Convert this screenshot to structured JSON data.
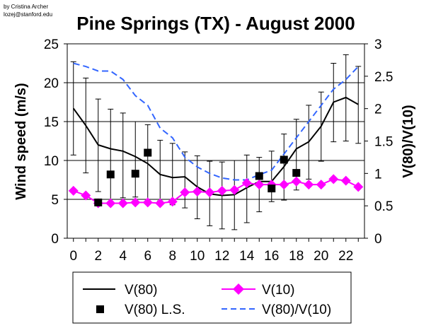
{
  "credit": {
    "line1": "by Cristina Archer",
    "line2": "lozej@stanford.edu"
  },
  "chart_data": {
    "type": "line",
    "title": "Pine Springs (TX) - August 2000",
    "xlabel": "",
    "ylabel": "Wind speed (m/s)",
    "y2label": "V(80)/V(10)",
    "x": [
      0,
      1,
      2,
      3,
      4,
      5,
      6,
      7,
      8,
      9,
      10,
      11,
      12,
      13,
      14,
      15,
      16,
      17,
      18,
      19,
      20,
      21,
      22,
      23
    ],
    "xticks": [
      "0",
      "2",
      "4",
      "6",
      "8",
      "10",
      "12",
      "14",
      "16",
      "18",
      "20",
      "22"
    ],
    "xtick_values": [
      0,
      2,
      4,
      6,
      8,
      10,
      12,
      14,
      16,
      18,
      20,
      22
    ],
    "xlim": [
      -0.5,
      23.5
    ],
    "ylim": [
      0,
      25
    ],
    "yticks": [
      "0",
      "5",
      "10",
      "15",
      "20",
      "25"
    ],
    "ytick_values": [
      0,
      5,
      10,
      15,
      20,
      25
    ],
    "y2lim": [
      0,
      3
    ],
    "y2ticks": [
      "0",
      "0.5",
      "1",
      "1.5",
      "2",
      "2.5",
      "3"
    ],
    "y2tick_values": [
      0,
      0.5,
      1,
      1.5,
      2,
      2.5,
      3
    ],
    "grid": "horizontal",
    "series": [
      {
        "name": "V(80)",
        "axis": "left",
        "style": "solid",
        "color": "#000000",
        "values": [
          16.7,
          14.5,
          12.0,
          11.5,
          11.2,
          10.5,
          9.6,
          8.2,
          7.8,
          7.9,
          6.6,
          5.7,
          5.5,
          5.6,
          6.5,
          7.3,
          7.3,
          9.2,
          11.5,
          12.4,
          14.4,
          17.5,
          18.1,
          17.2
        ],
        "err_low": [
          10.7,
          8.4,
          6.0,
          5.0,
          5.2,
          5.3,
          5.0,
          4.8,
          4.3,
          3.9,
          2.5,
          1.6,
          1.2,
          1.1,
          2.0,
          3.4,
          4.7,
          4.9,
          6.2,
          7.6,
          9.9,
          12.4,
          12.5,
          12.2
        ],
        "err_high": [
          22.7,
          20.6,
          17.9,
          16.6,
          16.1,
          15.0,
          14.6,
          12.6,
          12.2,
          11.1,
          10.6,
          9.9,
          9.8,
          10.0,
          10.7,
          10.4,
          11.2,
          13.4,
          15.3,
          17.1,
          18.8,
          22.5,
          23.6,
          22.1
        ]
      },
      {
        "name": "V(10)",
        "axis": "left",
        "style": "diamond",
        "color": "#ff00ff",
        "values": [
          6.1,
          5.5,
          4.5,
          4.5,
          4.5,
          4.6,
          4.6,
          4.5,
          4.7,
          5.9,
          6.0,
          5.9,
          6.1,
          6.2,
          7.1,
          6.9,
          6.9,
          6.9,
          7.3,
          6.9,
          6.9,
          7.6,
          7.4,
          6.6
        ]
      },
      {
        "name": "V(80) L.S.",
        "axis": "left",
        "style": "square",
        "color": "#000000",
        "x": [
          2,
          3,
          5,
          6,
          15,
          16,
          17,
          18
        ],
        "values": [
          4.6,
          8.2,
          8.3,
          11.0,
          8.0,
          6.4,
          10.1,
          8.4
        ]
      },
      {
        "name": "V(80)/V(10)",
        "axis": "right",
        "style": "dashed",
        "color": "#3366ff",
        "values": [
          2.7,
          2.65,
          2.58,
          2.58,
          2.45,
          2.2,
          2.05,
          1.7,
          1.55,
          1.25,
          1.1,
          1.0,
          0.93,
          0.9,
          0.9,
          0.98,
          1.05,
          1.3,
          1.55,
          1.8,
          2.05,
          2.3,
          2.45,
          2.65
        ]
      }
    ],
    "legend": {
      "placement": "bottom",
      "entries": [
        "V(80)",
        "V(10)",
        "V(80) L.S.",
        "V(80)/V(10)"
      ]
    }
  }
}
